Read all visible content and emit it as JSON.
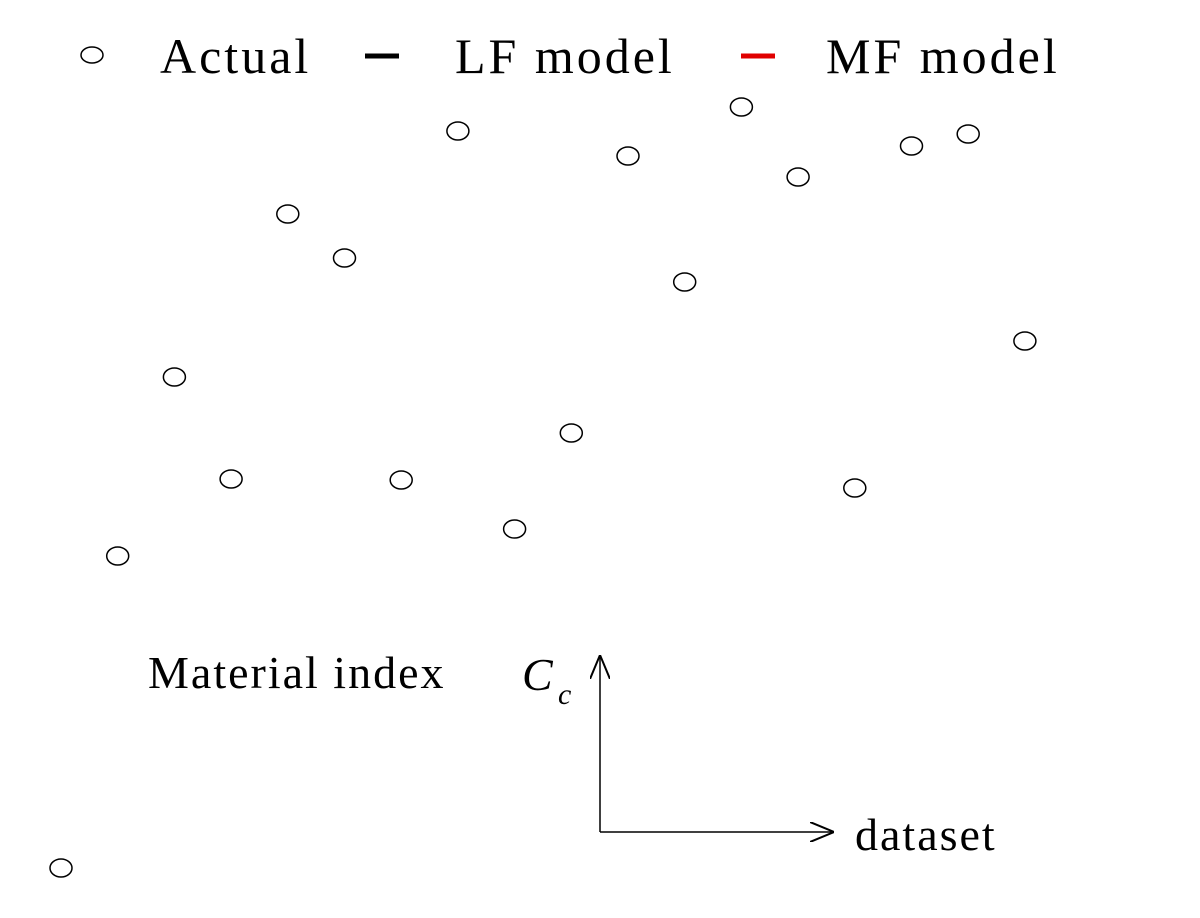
{
  "chart_data": {
    "type": "scatter",
    "x_label": "dataset",
    "y_label": "Material index",
    "y_label_symbol": "C",
    "y_label_subscript": "c",
    "x": [
      1,
      2,
      3,
      4,
      5,
      6,
      7,
      8,
      9,
      10,
      11,
      12,
      13,
      14,
      15,
      16,
      17,
      18
    ],
    "series": [
      {
        "name": "Actual",
        "color": "#000000",
        "marker": "circle",
        "values": [
          1.2,
          32.4,
          50.3,
          40.1,
          66.6,
          62.2,
          40.0,
          74.9,
          35.1,
          44.7,
          72.4,
          59.8,
          77.3,
          70.3,
          39.2,
          73.4,
          74.6,
          53.9
        ]
      },
      {
        "name": "LF model",
        "color": "#000000",
        "marker": "line",
        "values": []
      },
      {
        "name": "MF model",
        "color": "#e00000",
        "marker": "line",
        "values": []
      }
    ]
  }
}
